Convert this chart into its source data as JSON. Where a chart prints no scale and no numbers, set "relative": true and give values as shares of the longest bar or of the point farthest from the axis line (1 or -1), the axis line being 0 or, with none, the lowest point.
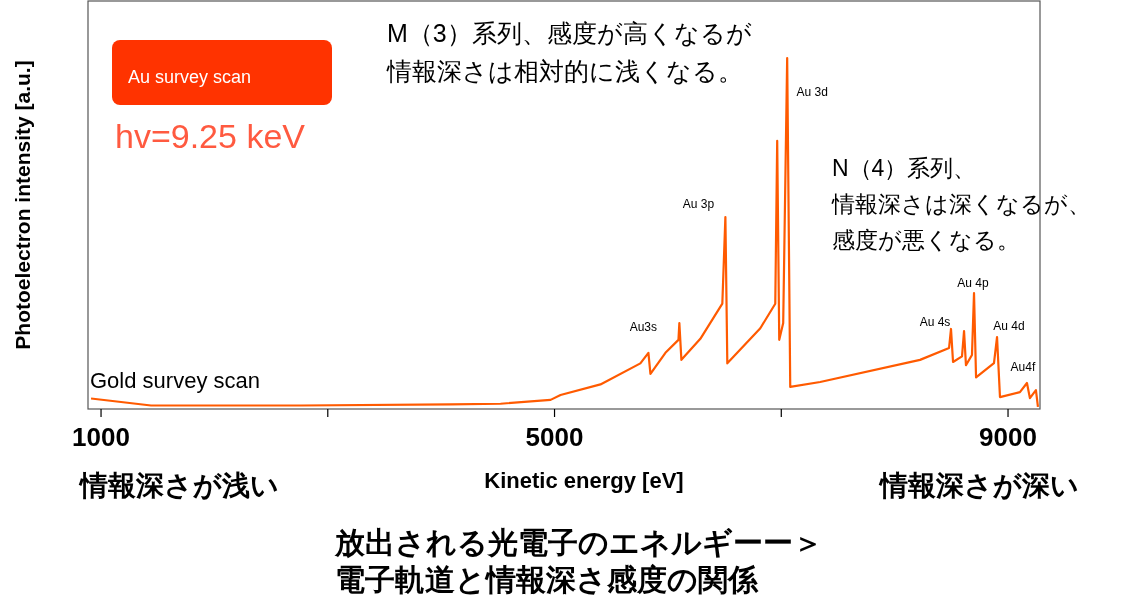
{
  "chart_data": {
    "type": "line",
    "relative": true,
    "xlabel": "Kinetic energy [eV]",
    "ylabel": "Photoelectron intensity [a.u.]",
    "xlim": [
      885,
      9282
    ],
    "xticks": [
      1000,
      {
        "value": 3000,
        "label": null
      },
      5000,
      {
        "value": 7000,
        "label": null
      },
      9000
    ],
    "grid": false,
    "line_style": "solid",
    "series": [
      {
        "color": "#ff5a00",
        "x": [
          912,
          1441,
          2762,
          4084,
          4524,
          4965,
          5053,
          5405,
          5757,
          5828,
          5846,
          5978,
          6093,
          6101,
          6119,
          6286,
          6480,
          6507,
          6524,
          6815,
          6947,
          6964,
          6982,
          7017,
          7052,
          7079,
          7343,
          8224,
          8480,
          8497,
          8515,
          8594,
          8612,
          8629,
          8682,
          8700,
          8718,
          8876,
          8903,
          8929,
          9105,
          9167,
          9193,
          9246,
          9264
        ],
        "values": [
          0.03,
          0.01,
          0.01,
          0.013,
          0.015,
          0.026,
          0.04,
          0.07,
          0.13,
          0.16,
          0.1,
          0.16,
          0.197,
          0.245,
          0.14,
          0.2,
          0.3,
          0.547,
          0.13,
          0.23,
          0.3,
          0.764,
          0.197,
          0.245,
          1,
          0.063,
          0.077,
          0.14,
          0.174,
          0.228,
          0.134,
          0.15,
          0.222,
          0.125,
          0.154,
          0.33,
          0.09,
          0.131,
          0.205,
          0.034,
          0.048,
          0.074,
          0.031,
          0.054,
          0.006
        ]
      }
    ],
    "annotations": [
      {
        "text": "Au3s",
        "x": 6101,
        "y": 0.245
      },
      {
        "text": "Au 3p",
        "x": 6507,
        "y": 0.547
      },
      {
        "text": "Au 3d",
        "x": 7052,
        "y": 1
      },
      {
        "text": "Au 4s",
        "x": 8497,
        "y": 0.228
      },
      {
        "text": "Au 4p",
        "x": 8700,
        "y": 0.33
      },
      {
        "text": "Au 4d",
        "x": 8903,
        "y": 0.205
      },
      {
        "text": "Au4f",
        "x": 9167,
        "y": 0.074
      },
      "Au survey scan",
      "hv=9.25 keV",
      "Gold survey scan",
      "M（3）系列、感度が高くなるが情報深さは相対的に浅くなる。",
      "N（4）系列、情報深さは深くなるが、感度が悪くなる。",
      "情報深さが浅い",
      "情報深さが深い",
      "放出される光電子のエネルギーー＞電子軌道と情報深さ感度の関係"
    ]
  }
}
